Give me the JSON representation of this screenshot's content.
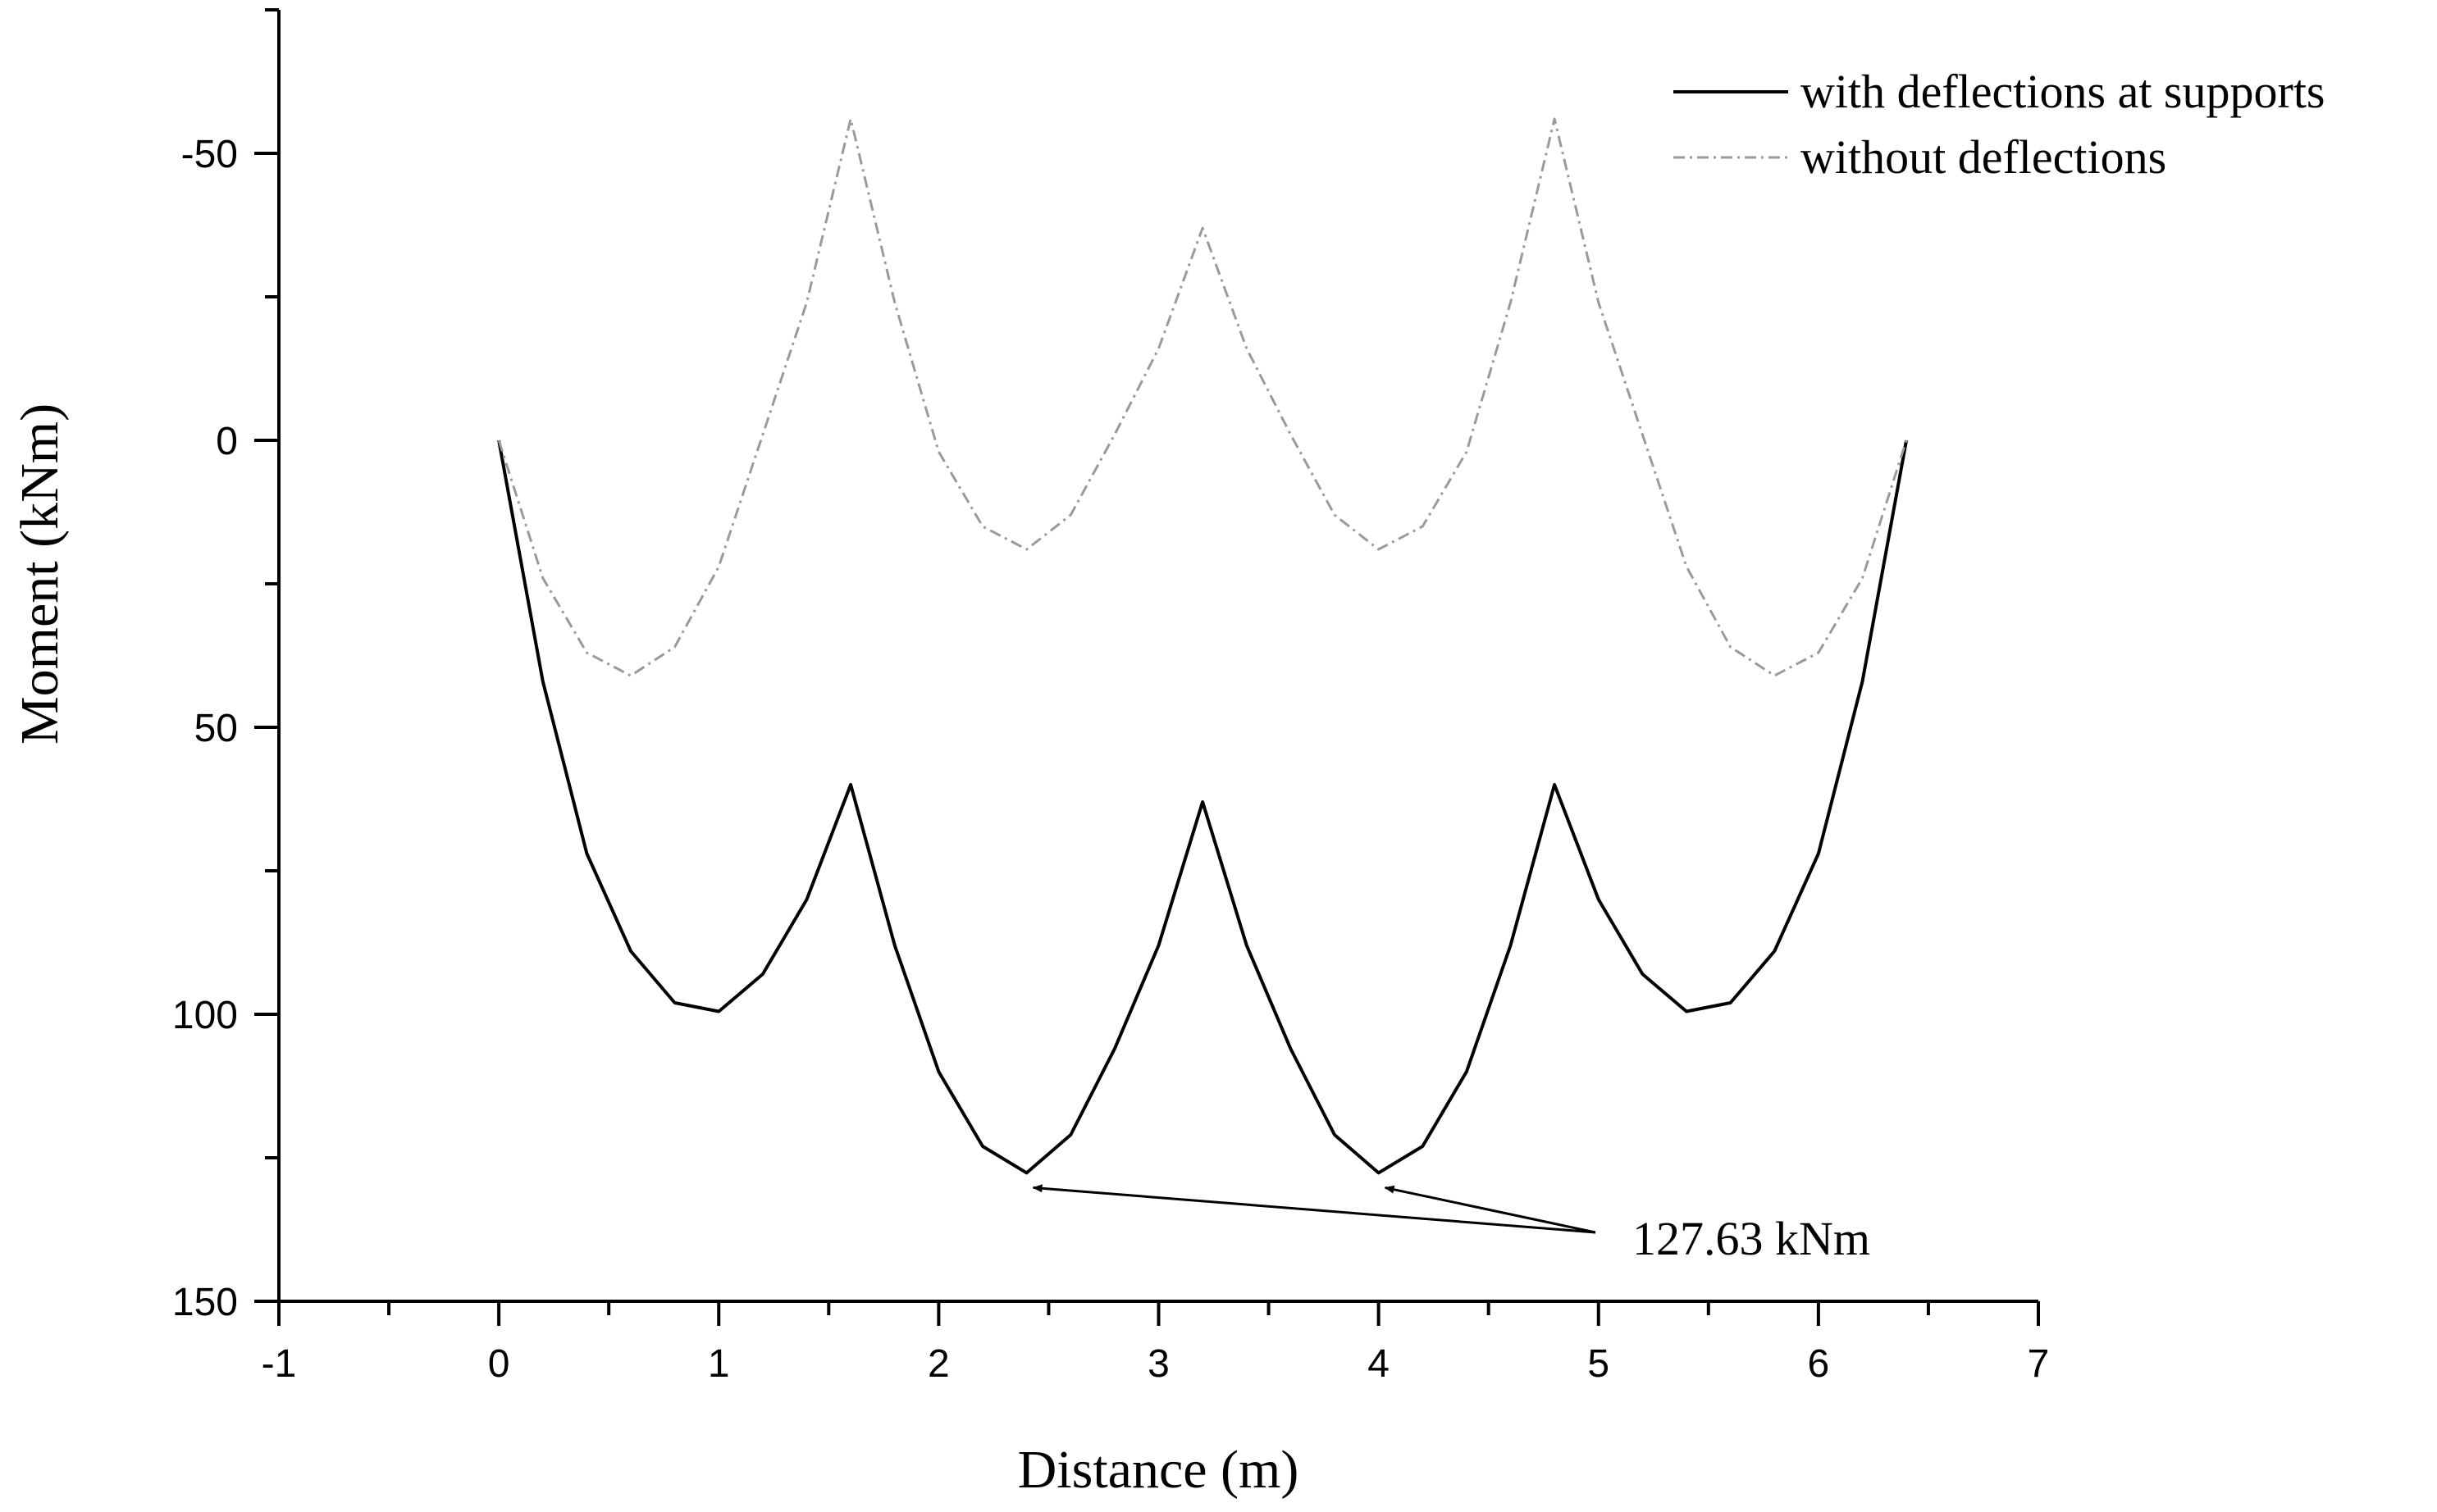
{
  "chart_data": {
    "type": "line",
    "xlabel": "Distance (m)",
    "ylabel": "Moment (kNm)",
    "xlim": [
      -1,
      7
    ],
    "ylim": [
      150,
      -75
    ],
    "y_axis_inverted": true,
    "x_ticks": [
      -1,
      0,
      1,
      2,
      3,
      4,
      5,
      6,
      7
    ],
    "x_minor_ticks": [
      -0.5,
      0.5,
      1.5,
      2.5,
      3.5,
      4.5,
      5.5,
      6.5
    ],
    "y_ticks": [
      -50,
      0,
      50,
      100,
      150
    ],
    "y_minor_ticks": [
      -75,
      -25,
      25,
      75,
      125
    ],
    "grid": false,
    "legend_position": "top-right",
    "series": [
      {
        "name": "with deflections at supports",
        "style": "solid",
        "color": "#000000",
        "x": [
          0,
          0.2,
          0.4,
          0.6,
          0.8,
          1.0,
          1.2,
          1.4,
          1.6,
          1.8,
          2.0,
          2.2,
          2.4,
          2.6,
          2.8,
          3.0,
          3.2,
          3.4,
          3.6,
          3.8,
          4.0,
          4.2,
          4.4,
          4.6,
          4.8,
          5.0,
          5.2,
          5.4,
          5.6,
          5.8,
          6.0,
          6.2,
          6.4
        ],
        "y": [
          0,
          42,
          72,
          89,
          98,
          99.5,
          93,
          80,
          60,
          88,
          110,
          123,
          127.63,
          121,
          106,
          88,
          63,
          88,
          106,
          121,
          127.63,
          123,
          110,
          88,
          60,
          80,
          93,
          99.5,
          98,
          89,
          72,
          42,
          0
        ]
      },
      {
        "name": "without deflections",
        "style": "dash-dot",
        "color": "#9a9a9a",
        "x": [
          0,
          0.2,
          0.4,
          0.6,
          0.8,
          1.0,
          1.2,
          1.4,
          1.6,
          1.8,
          2.0,
          2.2,
          2.4,
          2.6,
          2.8,
          3.0,
          3.2,
          3.4,
          3.6,
          3.8,
          4.0,
          4.2,
          4.4,
          4.6,
          4.8,
          5.0,
          5.2,
          5.4,
          5.6,
          5.8,
          6.0,
          6.2,
          6.4
        ],
        "y": [
          0,
          24,
          37,
          41,
          36,
          22,
          -1,
          -24,
          -56,
          -24,
          2,
          15,
          19,
          13,
          -1,
          -16,
          -37,
          -16,
          -1,
          13,
          19,
          15,
          2,
          -24,
          -56,
          -24,
          -1,
          22,
          36,
          41,
          37,
          24,
          0
        ]
      }
    ],
    "annotations": [
      {
        "text": "127.63 kNm",
        "targets": [
          [
            2.4,
            127.63
          ],
          [
            4.0,
            127.63
          ]
        ]
      }
    ]
  }
}
